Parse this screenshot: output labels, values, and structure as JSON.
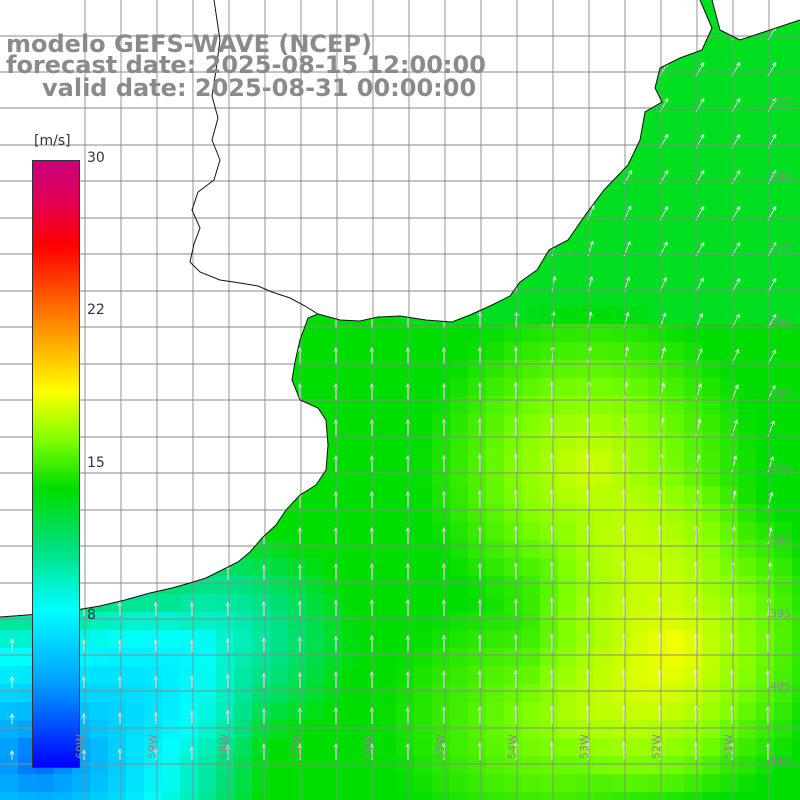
{
  "title": {
    "line1": "modelo GEFS-WAVE (NCEP)",
    "line2": "forecast date: 2025-08-15 12:00:00",
    "line3": "valid date: 2025-08-31 00:00:00"
  },
  "colorbar": {
    "unit": "[m/s]",
    "min": 0,
    "max": 30,
    "ticks": [
      {
        "value": 30,
        "label": "30"
      },
      {
        "value": 22,
        "label": "22"
      },
      {
        "value": 15,
        "label": "15"
      },
      {
        "value": 8,
        "label": "8"
      }
    ],
    "colors": [
      "#0000ff",
      "#00a0ff",
      "#00ffff",
      "#00e080",
      "#00dd00",
      "#80ff00",
      "#ffff00",
      "#ffaa00",
      "#ff5500",
      "#ff0000",
      "#c8007a"
    ]
  },
  "map": {
    "lon_range": [
      -61,
      -50
    ],
    "lat_range": [
      -41,
      -30
    ],
    "lat_labels": [
      "32S",
      "33S",
      "34S",
      "35S",
      "36S",
      "37S",
      "38S",
      "39S",
      "40S",
      "41S"
    ],
    "lon_labels": [
      "60W",
      "59W",
      "58W",
      "57W",
      "56W",
      "55W",
      "54W",
      "53W",
      "52W",
      "51W"
    ],
    "land_color": "#ffffff",
    "grid_color": "#8a8a8a",
    "arrow_color": "#ffffff"
  }
}
